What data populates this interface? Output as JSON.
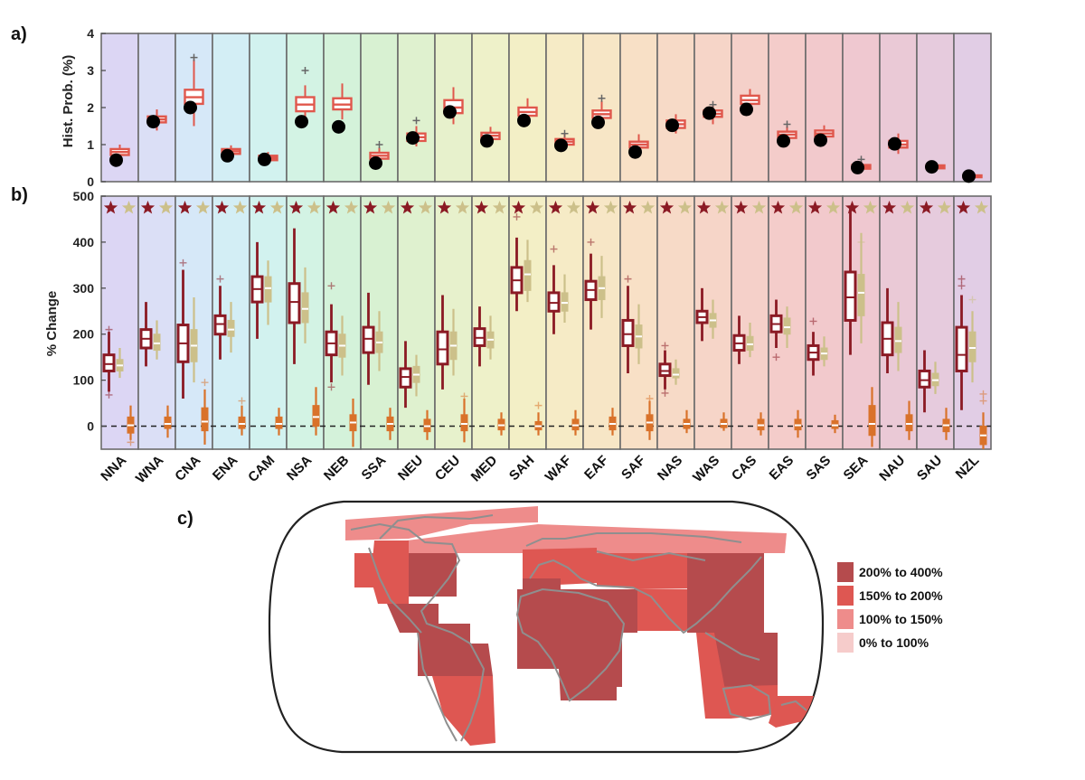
{
  "labels": {
    "a": "a)",
    "b": "b)",
    "c": "c)"
  },
  "chart_data": [
    {
      "id": "panel-a",
      "type": "box",
      "ylabel": "Hist. Prob. (%)",
      "ylim": [
        0,
        4
      ],
      "yticks": [
        0,
        1,
        2,
        3,
        4
      ],
      "grid": false,
      "categories": [
        "NNA",
        "WNA",
        "CNA",
        "ENA",
        "CAM",
        "NSA",
        "NEB",
        "SSA",
        "NEU",
        "CEU",
        "MED",
        "SAH",
        "WAF",
        "EAF",
        "SAF",
        "NAS",
        "WAS",
        "CAS",
        "EAS",
        "SAS",
        "SEA",
        "NAU",
        "SAU",
        "NZL"
      ],
      "background_colors": [
        "#dcd6f4",
        "#dbdff6",
        "#d6e8f8",
        "#d3eef5",
        "#d2f2ef",
        "#d3f3e4",
        "#d4f2da",
        "#d8f1d2",
        "#dff1cf",
        "#e7f1cc",
        "#eef1c9",
        "#f3efc6",
        "#f6ebc6",
        "#f7e6c6",
        "#f8e0c6",
        "#f7dac7",
        "#f6d5c8",
        "#f5d0c9",
        "#f4ccca",
        "#f2c9cc",
        "#efc8d0",
        "#eac9d6",
        "#e6cbdd",
        "#e1cde5"
      ],
      "series": [
        {
          "color": "#e0574c",
          "box_q1": [
            0.72,
            1.6,
            2.1,
            0.75,
            0.58,
            1.9,
            1.95,
            0.62,
            1.1,
            1.85,
            1.15,
            1.78,
            1.0,
            1.72,
            0.92,
            1.45,
            1.75,
            2.1,
            1.18,
            1.22,
            0.35,
            0.92,
            0.36,
            0.12
          ],
          "median": [
            0.8,
            1.68,
            2.28,
            0.82,
            0.64,
            2.08,
            2.08,
            0.7,
            1.2,
            2.0,
            1.24,
            1.88,
            1.08,
            1.82,
            1.0,
            1.55,
            1.83,
            2.2,
            1.27,
            1.3,
            0.4,
            1.0,
            0.4,
            0.14
          ],
          "box_q3": [
            0.88,
            1.76,
            2.48,
            0.88,
            0.7,
            2.28,
            2.25,
            0.78,
            1.3,
            2.2,
            1.32,
            2.0,
            1.15,
            1.92,
            1.08,
            1.65,
            1.92,
            2.32,
            1.35,
            1.38,
            0.45,
            1.1,
            0.44,
            0.17
          ],
          "whisker_low": [
            0.6,
            1.38,
            1.5,
            0.65,
            0.5,
            1.6,
            1.68,
            0.5,
            0.95,
            1.55,
            1.0,
            1.6,
            0.88,
            1.5,
            0.75,
            1.3,
            1.55,
            1.95,
            1.05,
            1.1,
            0.28,
            0.75,
            0.32,
            0.1
          ],
          "whisker_high": [
            1.0,
            1.95,
            3.3,
            0.98,
            0.8,
            2.6,
            2.65,
            0.92,
            1.5,
            2.55,
            1.48,
            2.25,
            1.3,
            2.18,
            1.28,
            1.82,
            2.05,
            2.5,
            1.5,
            1.52,
            0.55,
            1.3,
            0.48,
            0.2
          ],
          "outliers": [
            [],
            [],
            [
              3.35
            ],
            [],
            [],
            [
              3.0
            ],
            [],
            [
              1.0
            ],
            [
              1.65
            ],
            [],
            [],
            [],
            [
              1.3
            ],
            [
              2.25
            ],
            [],
            [],
            [
              2.08
            ],
            [],
            [
              1.55
            ],
            [],
            [
              0.6
            ],
            [],
            [],
            []
          ]
        }
      ],
      "observed": [
        0.58,
        1.62,
        2.0,
        0.7,
        0.6,
        1.62,
        1.48,
        0.5,
        1.18,
        1.88,
        1.1,
        1.65,
        0.98,
        1.6,
        0.8,
        1.52,
        1.85,
        1.95,
        1.1,
        1.12,
        0.38,
        1.02,
        0.4,
        0.15
      ]
    },
    {
      "id": "panel-b",
      "type": "box",
      "ylabel": "% Change",
      "ylim": [
        -50,
        500
      ],
      "yticks": [
        0,
        100,
        200,
        300,
        400,
        500
      ],
      "grid": false,
      "reference_line": 0,
      "categories": [
        "NNA",
        "WNA",
        "CNA",
        "ENA",
        "CAM",
        "NSA",
        "NEB",
        "SSA",
        "NEU",
        "CEU",
        "MED",
        "SAH",
        "WAF",
        "EAF",
        "SAF",
        "NAS",
        "WAS",
        "CAS",
        "EAS",
        "SAS",
        "SEA",
        "NAU",
        "SAU",
        "NZL"
      ],
      "series": [
        {
          "color": "#8b1a24",
          "median": [
            135,
            190,
            180,
            222,
            298,
            270,
            180,
            190,
            107,
            167,
            192,
            317,
            268,
            296,
            200,
            120,
            237,
            180,
            222,
            160,
            280,
            190,
            100,
            155
          ],
          "box_q1": [
            120,
            170,
            140,
            200,
            270,
            225,
            155,
            160,
            85,
            135,
            175,
            290,
            250,
            275,
            175,
            110,
            225,
            165,
            205,
            145,
            230,
            155,
            85,
            120
          ],
          "box_q3": [
            155,
            210,
            220,
            240,
            325,
            310,
            205,
            215,
            125,
            205,
            212,
            345,
            290,
            315,
            230,
            135,
            250,
            197,
            240,
            175,
            335,
            225,
            120,
            215
          ],
          "whisker_low": [
            75,
            130,
            60,
            145,
            190,
            135,
            95,
            90,
            40,
            80,
            130,
            250,
            200,
            210,
            115,
            80,
            185,
            135,
            170,
            110,
            155,
            115,
            30,
            35
          ],
          "whisker_high": [
            205,
            270,
            340,
            305,
            400,
            430,
            265,
            290,
            185,
            285,
            260,
            410,
            350,
            375,
            305,
            165,
            300,
            240,
            275,
            205,
            475,
            300,
            165,
            285
          ],
          "outliers": [
            [
              68,
              210
            ],
            [],
            [
              355
            ],
            [
              320
            ],
            [],
            [],
            [
              85,
              305
            ],
            [],
            [],
            [],
            [],
            [
              455
            ],
            [
              385
            ],
            [
              400
            ],
            [
              320
            ],
            [
              72,
              175
            ],
            [],
            [],
            [
              150
            ],
            [
              228
            ],
            [],
            [],
            [],
            [
              305,
              320
            ]
          ]
        },
        {
          "color": "#ccc08a",
          "median": [
            132,
            180,
            175,
            210,
            300,
            255,
            175,
            182,
            112,
            175,
            188,
            330,
            268,
            300,
            195,
            112,
            230,
            178,
            215,
            158,
            290,
            185,
            100,
            170
          ],
          "box_q1": [
            120,
            165,
            140,
            195,
            270,
            225,
            150,
            160,
            95,
            145,
            170,
            295,
            250,
            275,
            170,
            105,
            215,
            165,
            200,
            145,
            240,
            160,
            88,
            140
          ],
          "box_q3": [
            145,
            200,
            210,
            230,
            325,
            290,
            200,
            205,
            130,
            205,
            205,
            360,
            290,
            325,
            220,
            125,
            245,
            195,
            235,
            170,
            330,
            215,
            115,
            205
          ],
          "whisker_low": [
            105,
            145,
            95,
            160,
            220,
            180,
            110,
            120,
            65,
            110,
            145,
            270,
            225,
            235,
            135,
            90,
            190,
            150,
            170,
            130,
            180,
            120,
            70,
            95
          ],
          "whisker_high": [
            170,
            230,
            280,
            270,
            360,
            345,
            240,
            250,
            155,
            255,
            240,
            405,
            330,
            370,
            265,
            145,
            275,
            225,
            260,
            195,
            420,
            270,
            140,
            250
          ],
          "outliers": [
            [],
            [],
            [],
            [],
            [],
            [],
            [],
            [],
            [],
            [],
            [],
            [],
            [],
            [],
            [],
            [],
            [],
            [],
            [],
            [],
            [
              400
            ],
            [],
            [],
            [
              275
            ]
          ]
        },
        {
          "color": "#d9722a",
          "median": [
            2,
            5,
            10,
            5,
            5,
            20,
            8,
            5,
            0,
            5,
            2,
            0,
            2,
            5,
            8,
            5,
            5,
            2,
            2,
            2,
            5,
            5,
            2,
            -20
          ],
          "box_q1": [
            -15,
            -5,
            -10,
            -5,
            -5,
            0,
            -10,
            -10,
            -12,
            -10,
            -8,
            -8,
            -8,
            -8,
            -10,
            -5,
            -3,
            -8,
            -8,
            -5,
            -20,
            -10,
            -12,
            -40
          ],
          "box_q3": [
            20,
            20,
            40,
            20,
            20,
            45,
            25,
            20,
            15,
            25,
            15,
            10,
            15,
            20,
            25,
            15,
            15,
            15,
            15,
            12,
            45,
            25,
            15,
            0
          ],
          "whisker_low": [
            -30,
            -25,
            -40,
            -20,
            -20,
            -20,
            -45,
            -30,
            -30,
            -35,
            -20,
            -20,
            -20,
            -20,
            -30,
            -15,
            -10,
            -20,
            -25,
            -15,
            -45,
            -30,
            -30,
            -50
          ],
          "whisker_high": [
            45,
            45,
            80,
            45,
            40,
            85,
            60,
            40,
            35,
            60,
            30,
            30,
            35,
            40,
            55,
            35,
            30,
            30,
            35,
            25,
            85,
            55,
            40,
            30
          ],
          "outliers": [
            [
              -35
            ],
            [],
            [
              95
            ],
            [
              55
            ],
            [],
            [],
            [],
            [],
            [],
            [
              65
            ],
            [],
            [
              45
            ],
            [],
            [],
            [
              60
            ],
            [],
            [],
            [],
            [],
            [],
            [],
            [],
            [],
            [
              55,
              70
            ]
          ]
        }
      ],
      "significance_stars": [
        "*",
        "*",
        "*",
        "*",
        "*",
        "*",
        "*",
        "*",
        "*",
        "*",
        "*",
        "*",
        "*",
        "*",
        "*",
        "*",
        "*",
        "*",
        "*",
        "*",
        "*",
        "*",
        "*",
        "*"
      ]
    },
    {
      "id": "panel-c",
      "type": "map",
      "legend": [
        {
          "label": "200% to 400%",
          "color": "#b54b4d"
        },
        {
          "label": "150% to 200%",
          "color": "#de5752"
        },
        {
          "label": "100% to 150%",
          "color": "#ee8c8b"
        },
        {
          "label": "0% to 100%",
          "color": "#f6cccb"
        }
      ]
    }
  ]
}
